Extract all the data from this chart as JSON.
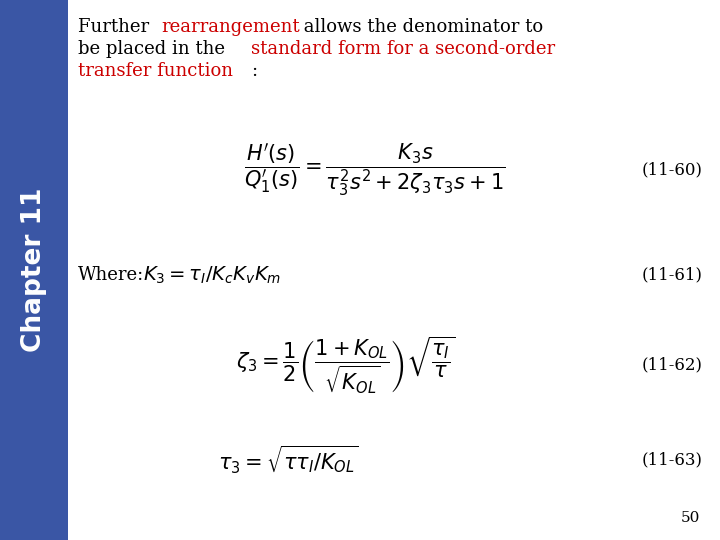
{
  "background_color": "#ffffff",
  "sidebar_color": "#3a56a5",
  "sidebar_text": "Chapter 11",
  "sidebar_text_color": "#ffffff",
  "eq60_label": "(11-60)",
  "eq61_label": "(11-61)",
  "eq62_label": "(11-62)",
  "eq63_label": "(11-63)",
  "page_number": "50",
  "black_color": "#000000",
  "red_color": "#cc0000"
}
